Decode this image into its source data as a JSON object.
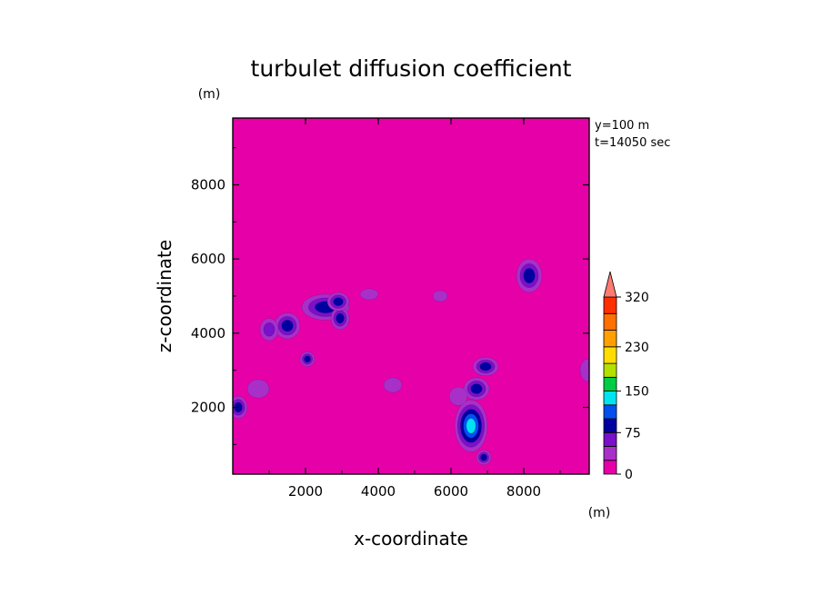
{
  "chart_data": {
    "type": "heatmap",
    "title": "turbulet diffusion coefficient",
    "xlabel": "x-coordinate",
    "ylabel": "z-coordinate",
    "x_unit": "(m)",
    "y_unit": "(m)",
    "xlim": [
      0,
      9800
    ],
    "ylim": [
      200,
      9800
    ],
    "xticks": [
      2000,
      4000,
      6000,
      8000
    ],
    "yticks": [
      2000,
      4000,
      6000,
      8000
    ],
    "annotations": [
      "y=100 m",
      "t=14050 sec"
    ],
    "background_value": 0,
    "colorbar": {
      "tick_values": [
        0,
        75,
        150,
        230,
        320
      ],
      "tick_labels": [
        "0",
        "75",
        "150",
        "230",
        "320"
      ],
      "levels": [
        {
          "min": 0,
          "max": 25,
          "color": "#e600a8"
        },
        {
          "min": 25,
          "max": 50,
          "color": "#a830c8"
        },
        {
          "min": 50,
          "max": 75,
          "color": "#7a10c8"
        },
        {
          "min": 75,
          "max": 100,
          "color": "#0000a0"
        },
        {
          "min": 100,
          "max": 125,
          "color": "#0050f0"
        },
        {
          "min": 125,
          "max": 150,
          "color": "#00e4f0"
        },
        {
          "min": 150,
          "max": 175,
          "color": "#00cc44"
        },
        {
          "min": 175,
          "max": 200,
          "color": "#b4e000"
        },
        {
          "min": 200,
          "max": 230,
          "color": "#ffdd00"
        },
        {
          "min": 230,
          "max": 260,
          "color": "#ffa000"
        },
        {
          "min": 260,
          "max": 290,
          "color": "#ff7000"
        },
        {
          "min": 290,
          "max": 320,
          "color": "#ff3000"
        }
      ],
      "overflow_color": "#ff7a70"
    },
    "features": [
      {
        "x": 2550,
        "z": 4700,
        "rx": 650,
        "rz": 350,
        "peak": 95
      },
      {
        "x": 2950,
        "z": 4400,
        "rx": 250,
        "rz": 300,
        "peak": 100
      },
      {
        "x": 1500,
        "z": 4200,
        "rx": 350,
        "rz": 350,
        "peak": 90
      },
      {
        "x": 2900,
        "z": 4850,
        "rx": 300,
        "rz": 250,
        "peak": 85
      },
      {
        "x": 2050,
        "z": 3300,
        "rx": 200,
        "rz": 200,
        "peak": 80
      },
      {
        "x": 1000,
        "z": 4100,
        "rx": 250,
        "rz": 300,
        "peak": 55
      },
      {
        "x": 8150,
        "z": 5550,
        "rx": 350,
        "rz": 450,
        "peak": 100
      },
      {
        "x": 6550,
        "z": 1500,
        "rx": 450,
        "rz": 700,
        "peak": 150
      },
      {
        "x": 6700,
        "z": 2500,
        "rx": 350,
        "rz": 300,
        "peak": 100
      },
      {
        "x": 6950,
        "z": 3100,
        "rx": 350,
        "rz": 250,
        "peak": 95
      },
      {
        "x": 6900,
        "z": 650,
        "rx": 200,
        "rz": 200,
        "peak": 80
      },
      {
        "x": 6200,
        "z": 2300,
        "rx": 250,
        "rz": 250,
        "peak": 50
      },
      {
        "x": 150,
        "z": 2000,
        "rx": 250,
        "rz": 300,
        "peak": 85
      },
      {
        "x": 700,
        "z": 2500,
        "rx": 300,
        "rz": 250,
        "peak": 40
      },
      {
        "x": 9750,
        "z": 3000,
        "rx": 200,
        "rz": 300,
        "peak": 40
      },
      {
        "x": 4400,
        "z": 2600,
        "rx": 250,
        "rz": 200,
        "peak": 35
      },
      {
        "x": 5700,
        "z": 5000,
        "rx": 200,
        "rz": 150,
        "peak": 30
      },
      {
        "x": 3750,
        "z": 5050,
        "rx": 250,
        "rz": 150,
        "peak": 35
      }
    ]
  }
}
